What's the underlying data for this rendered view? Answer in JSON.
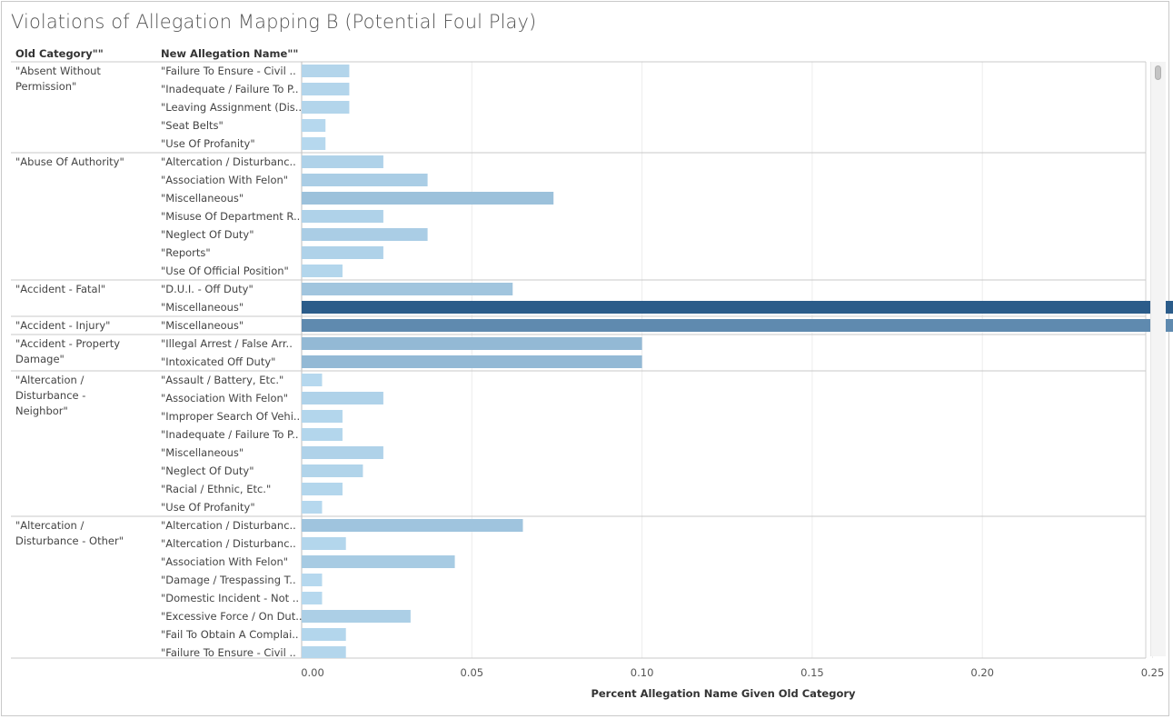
{
  "header": {
    "title": "Violations of Allegation Mapping B (Potential Foul Play)",
    "col_old_category": "Old Category\"\"",
    "col_new_allegation": "New Allegation Name\"\""
  },
  "chart_data": {
    "type": "bar",
    "orientation": "horizontal",
    "title": "Violations of Allegation Mapping B (Potential Foul Play)",
    "xlabel": "Percent Allegation Name Given Old Category",
    "xlim": [
      0,
      0.5
    ],
    "xticks": [
      "0.00",
      "0.05",
      "0.10",
      "0.15",
      "0.20",
      "0.25",
      "0.30",
      "0.35",
      "0.40",
      "0.45"
    ],
    "grid": true,
    "color_scale": [
      "#b9dbf0",
      "#2b5c8a"
    ],
    "groups": [
      {
        "category": "\"Absent Without Permission\"",
        "rows": [
          {
            "name": "\"Failure To Ensure - Civil ..",
            "value": 0.014
          },
          {
            "name": "\"Inadequate / Failure To P..",
            "value": 0.014
          },
          {
            "name": "\"Leaving Assignment (Dis..",
            "value": 0.014
          },
          {
            "name": "\"Seat Belts\"",
            "value": 0.007
          },
          {
            "name": "\"Use Of Profanity\"",
            "value": 0.007
          }
        ]
      },
      {
        "category": "\"Abuse Of Authority\"",
        "rows": [
          {
            "name": "\"Altercation / Disturbanc..",
            "value": 0.024
          },
          {
            "name": "\"Association With Felon\"",
            "value": 0.037
          },
          {
            "name": "\"Miscellaneous\"",
            "value": 0.074
          },
          {
            "name": "\"Misuse Of Department R..",
            "value": 0.024
          },
          {
            "name": "\"Neglect Of Duty\"",
            "value": 0.037
          },
          {
            "name": "\"Reports\"",
            "value": 0.024
          },
          {
            "name": "\"Use Of Official Position\"",
            "value": 0.012
          }
        ]
      },
      {
        "category": "\"Accident - Fatal\"",
        "rows": [
          {
            "name": "\"D.U.I. - Off Duty\"",
            "value": 0.062
          },
          {
            "name": "\"Miscellaneous\"",
            "value": 0.438
          }
        ]
      },
      {
        "category": "\"Accident - Injury\"",
        "rows": [
          {
            "name": "\"Miscellaneous\"",
            "value": 0.264
          }
        ]
      },
      {
        "category": "\"Accident - Property Damage\"",
        "rows": [
          {
            "name": "\"Illegal Arrest / False Arr..",
            "value": 0.1
          },
          {
            "name": "\"Intoxicated Off Duty\"",
            "value": 0.1
          }
        ]
      },
      {
        "category": "\"Altercation / Disturbance - Neighbor\"",
        "rows": [
          {
            "name": "\"Assault / Battery, Etc.\"",
            "value": 0.006
          },
          {
            "name": "\"Association With Felon\"",
            "value": 0.024
          },
          {
            "name": "\"Improper Search Of Vehi..",
            "value": 0.012
          },
          {
            "name": "\"Inadequate / Failure To P..",
            "value": 0.012
          },
          {
            "name": "\"Miscellaneous\"",
            "value": 0.024
          },
          {
            "name": "\"Neglect Of Duty\"",
            "value": 0.018
          },
          {
            "name": "\"Racial / Ethnic, Etc.\"",
            "value": 0.012
          },
          {
            "name": "\"Use Of Profanity\"",
            "value": 0.006
          }
        ]
      },
      {
        "category": "\"Altercation / Disturbance - Other\"",
        "rows": [
          {
            "name": "\"Altercation / Disturbanc..",
            "value": 0.065
          },
          {
            "name": "\"Altercation / Disturbanc..",
            "value": 0.013
          },
          {
            "name": "\"Association With Felon\"",
            "value": 0.045
          },
          {
            "name": "\"Damage / Trespassing T..",
            "value": 0.006
          },
          {
            "name": "\"Domestic Incident - Not ..",
            "value": 0.006
          },
          {
            "name": "\"Excessive Force / On Dut..",
            "value": 0.032
          },
          {
            "name": "\"Fail To Obtain A Complai..",
            "value": 0.013
          },
          {
            "name": "\"Failure To Ensure - Civil ..",
            "value": 0.013
          }
        ]
      }
    ]
  }
}
